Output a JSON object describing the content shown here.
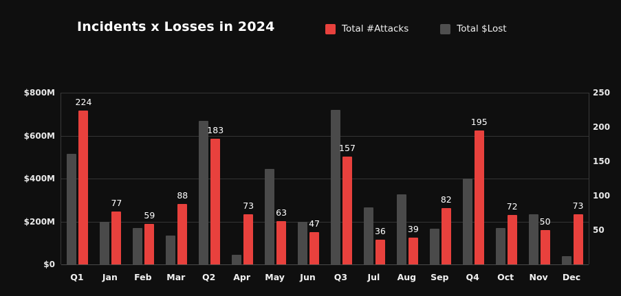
{
  "header": {
    "title": "Incidents x Losses in 2024"
  },
  "legend": [
    {
      "label": "Total #Attacks",
      "color": "#e8413d"
    },
    {
      "label": "Total $Lost",
      "color": "#4f4f4f"
    }
  ],
  "colors": {
    "background": "#0f0f0f",
    "attack_red": "#e8413d",
    "lost_gray": "#4a4a4a",
    "gridline": "#353535",
    "text": "#ffffff"
  },
  "chart_data": {
    "type": "bar",
    "title": "Incidents x Losses in 2024",
    "categories": [
      "Q1",
      "Jan",
      "Feb",
      "Mar",
      "Q2",
      "Apr",
      "May",
      "Jun",
      "Q3",
      "Jul",
      "Aug",
      "Sep",
      "Q4",
      "Oct",
      "Nov",
      "Dec"
    ],
    "series": [
      {
        "name": "Total $Lost",
        "axis": "left",
        "color": "#4a4a4a",
        "unit": "$M",
        "values": [
          515,
          200,
          170,
          135,
          670,
          45,
          445,
          200,
          720,
          265,
          325,
          165,
          400,
          170,
          235,
          40
        ]
      },
      {
        "name": "Total #Attacks",
        "axis": "right",
        "color": "#e8413d",
        "unit": "count",
        "values": [
          224,
          77,
          59,
          88,
          183,
          73,
          63,
          47,
          157,
          36,
          39,
          82,
          195,
          72,
          50,
          73
        ],
        "value_labels": true
      }
    ],
    "left_axis": {
      "label": "",
      "tick_labels": [
        "$800M",
        "$600M",
        "$400M",
        "$200M",
        "$0"
      ],
      "tick_values": [
        800,
        600,
        400,
        200,
        0
      ],
      "min": 0,
      "max": 800
    },
    "right_axis": {
      "label": "",
      "tick_labels": [
        "250",
        "200",
        "150",
        "100",
        "50"
      ],
      "tick_values": [
        250,
        200,
        150,
        100,
        50
      ],
      "min": 0,
      "max": 250
    },
    "grid": true,
    "legend_position": "top"
  }
}
